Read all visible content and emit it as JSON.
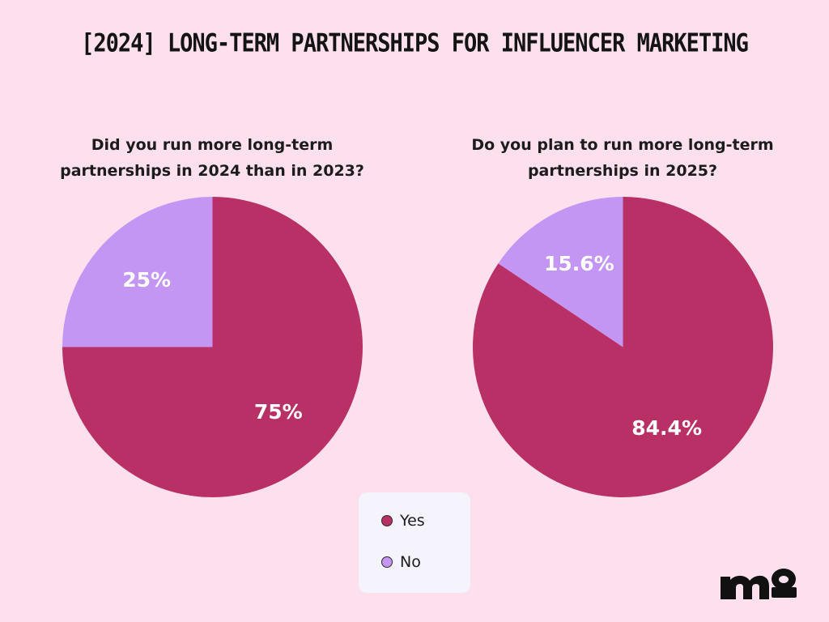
{
  "colors": {
    "background": "#fde0ee",
    "yes": "#b83065",
    "no": "#c496f4",
    "label": "#ffffff",
    "logo": "#111111"
  },
  "title": "[2024] LONG-TERM PARTNERSHIPS FOR INFLUENCER MARKETING",
  "legend": {
    "yes_label": "Yes",
    "no_label": "No"
  },
  "logo": {
    "text": "mo",
    "icon": "mo-logo-icon"
  },
  "chart_data": [
    {
      "type": "pie",
      "title": "Did you run more long-term partnerships in 2024 than in 2023?",
      "categories": [
        "Yes",
        "No"
      ],
      "values": [
        75,
        25
      ],
      "labels": [
        "75%",
        "25%"
      ]
    },
    {
      "type": "pie",
      "title": "Do you plan to run more long-term partnerships in 2025?",
      "categories": [
        "Yes",
        "No"
      ],
      "values": [
        84.4,
        15.6
      ],
      "labels": [
        "84.4%",
        "15.6%"
      ]
    }
  ]
}
